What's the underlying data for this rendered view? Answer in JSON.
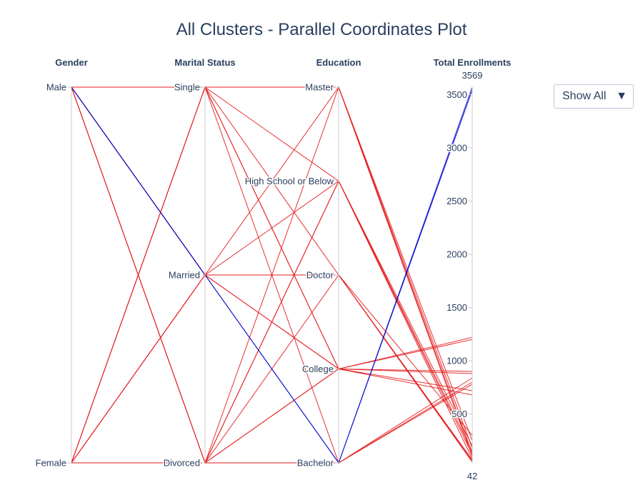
{
  "title": "All Clusters - Parallel Coordinates Plot",
  "dropdown": {
    "selected": "Show All",
    "arrow_icon": "triangle-down-icon"
  },
  "colors": {
    "cluster_a": "#e31a1c",
    "cluster_b": "#0000cc"
  },
  "chart_data": {
    "type": "parallel_coordinates",
    "title": "All Clusters - Parallel Coordinates Plot",
    "dimensions": [
      {
        "name": "Gender",
        "kind": "categorical",
        "categories": [
          "Male",
          "Female"
        ]
      },
      {
        "name": "Marital Status",
        "kind": "categorical",
        "categories": [
          "Single",
          "Married",
          "Divorced"
        ]
      },
      {
        "name": "Education",
        "kind": "categorical",
        "categories": [
          "Master",
          "High School or Below",
          "Doctor",
          "College",
          "Bachelor"
        ]
      },
      {
        "name": "Total Enrollments",
        "kind": "numeric",
        "range": [
          42,
          3569
        ],
        "ticks": [
          500,
          1000,
          1500,
          2000,
          2500,
          3000,
          3500
        ],
        "tick_labels": [
          "500",
          "1000",
          "1500",
          "2000",
          "2500",
          "3000",
          "3500"
        ],
        "range_labels": [
          "3569",
          "42"
        ]
      }
    ],
    "series": [
      {
        "color": "#e31a1c",
        "lines": [
          [
            "Male",
            "Single",
            "Master",
            100
          ],
          [
            "Male",
            "Single",
            "Doctor",
            60
          ],
          [
            "Male",
            "Single",
            "College",
            720
          ],
          [
            "Male",
            "Single",
            "Bachelor",
            840
          ],
          [
            "Male",
            "Divorced",
            "High School or Below",
            80
          ],
          [
            "Male",
            "Divorced",
            "College",
            1220
          ],
          [
            "Male",
            "Divorced",
            "Bachelor",
            780
          ],
          [
            "Male",
            "Married",
            "High School or Below",
            150
          ],
          [
            "Male",
            "Married",
            "Doctor",
            50
          ],
          [
            "Male",
            "Married",
            "College",
            900
          ],
          [
            "Female",
            "Single",
            "Master",
            250
          ],
          [
            "Female",
            "Single",
            "High School or Below",
            200
          ],
          [
            "Female",
            "Single",
            "College",
            680
          ],
          [
            "Female",
            "Married",
            "Master",
            130
          ],
          [
            "Female",
            "Married",
            "Doctor",
            300
          ],
          [
            "Female",
            "Married",
            "College",
            1200
          ],
          [
            "Female",
            "Divorced",
            "Master",
            180
          ],
          [
            "Female",
            "Divorced",
            "High School or Below",
            120
          ],
          [
            "Female",
            "Divorced",
            "Doctor",
            70
          ],
          [
            "Female",
            "Divorced",
            "College",
            880
          ],
          [
            "Female",
            "Divorced",
            "Bachelor",
            800
          ]
        ]
      },
      {
        "color": "#0000cc",
        "lines": [
          [
            "Male",
            "Married",
            "Bachelor",
            3569
          ],
          [
            "Male",
            "Married",
            "Bachelor",
            3540
          ]
        ]
      }
    ]
  }
}
